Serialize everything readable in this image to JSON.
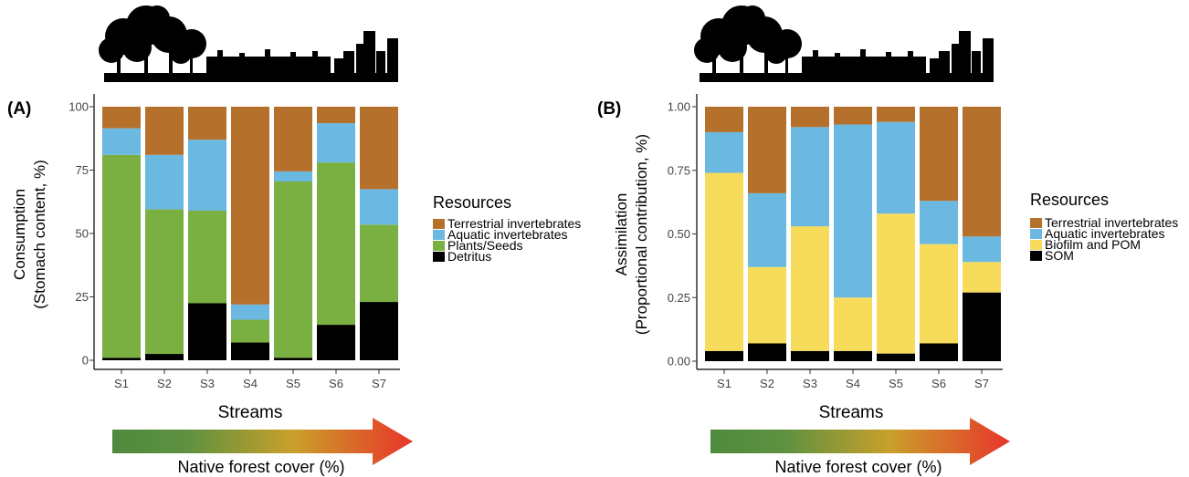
{
  "panels": [
    {
      "label": "(A)",
      "ylabel_line1": "Consumption",
      "ylabel_line2": "(Stomach content, %)",
      "xlabel": "Streams",
      "legend_title": "Resources",
      "arrow_label": "Native forest cover (%)"
    },
    {
      "label": "(B)",
      "ylabel_line1": "Assimilation",
      "ylabel_line2": "(Proportional contribution, %)",
      "xlabel": "Streams",
      "legend_title": "Resources",
      "arrow_label": "Native forest cover (%)"
    }
  ],
  "colors": {
    "terrestrial": "#B5702C",
    "aquatic": "#6BB8E1",
    "plants": "#7AB041",
    "biofilm": "#F7DC5C",
    "detritus": "#000000",
    "arrow_start": "#4E8A3E",
    "arrow_mid": "#C9A02A",
    "arrow_end": "#E8352A"
  },
  "chart_data": [
    {
      "type": "bar",
      "stacked": true,
      "categories": [
        "S1",
        "S2",
        "S3",
        "S4",
        "S5",
        "S6",
        "S7"
      ],
      "ylim": [
        0,
        100
      ],
      "yticks": [
        "0",
        "25",
        "50",
        "75",
        "100"
      ],
      "legend_placement": "right",
      "series": [
        {
          "name": "Detritus",
          "color": "#000000",
          "values": [
            1,
            2.5,
            22.5,
            7,
            1,
            14,
            23
          ]
        },
        {
          "name": "Plants/Seeds",
          "color": "#7AB041",
          "values": [
            80,
            57,
            36.5,
            9,
            69.5,
            64,
            30.5
          ]
        },
        {
          "name": "Aquatic invertebrates",
          "color": "#6BB8E1",
          "values": [
            10.5,
            21.5,
            28,
            6,
            4,
            15.5,
            14
          ]
        },
        {
          "name": "Terrestrial invertebrates",
          "color": "#B5702C",
          "values": [
            8.5,
            19,
            13,
            78,
            25.5,
            6.5,
            32.5
          ]
        }
      ],
      "legend_order": [
        "Terrestrial invertebrates",
        "Aquatic invertebrates",
        "Plants/Seeds",
        "Detritus"
      ]
    },
    {
      "type": "bar",
      "stacked": true,
      "categories": [
        "S1",
        "S2",
        "S3",
        "S4",
        "S5",
        "S6",
        "S7"
      ],
      "ylim": [
        0,
        1
      ],
      "yticks": [
        "0.00",
        "0.25",
        "0.50",
        "0.75",
        "1.00"
      ],
      "legend_placement": "right",
      "series": [
        {
          "name": "SOM",
          "color": "#000000",
          "values": [
            0.04,
            0.07,
            0.04,
            0.04,
            0.03,
            0.07,
            0.27
          ]
        },
        {
          "name": "Biofilm and POM",
          "color": "#F7DC5C",
          "values": [
            0.7,
            0.3,
            0.49,
            0.21,
            0.55,
            0.39,
            0.12
          ]
        },
        {
          "name": "Aquatic invertebrates",
          "color": "#6BB8E1",
          "values": [
            0.16,
            0.29,
            0.39,
            0.68,
            0.36,
            0.17,
            0.1
          ]
        },
        {
          "name": "Terrestrial invertebrates",
          "color": "#B5702C",
          "values": [
            0.1,
            0.34,
            0.08,
            0.07,
            0.06,
            0.37,
            0.51
          ]
        }
      ],
      "legend_order": [
        "Terrestrial invertebrates",
        "Aquatic invertebrates",
        "Biofilm and POM",
        "SOM"
      ]
    }
  ]
}
